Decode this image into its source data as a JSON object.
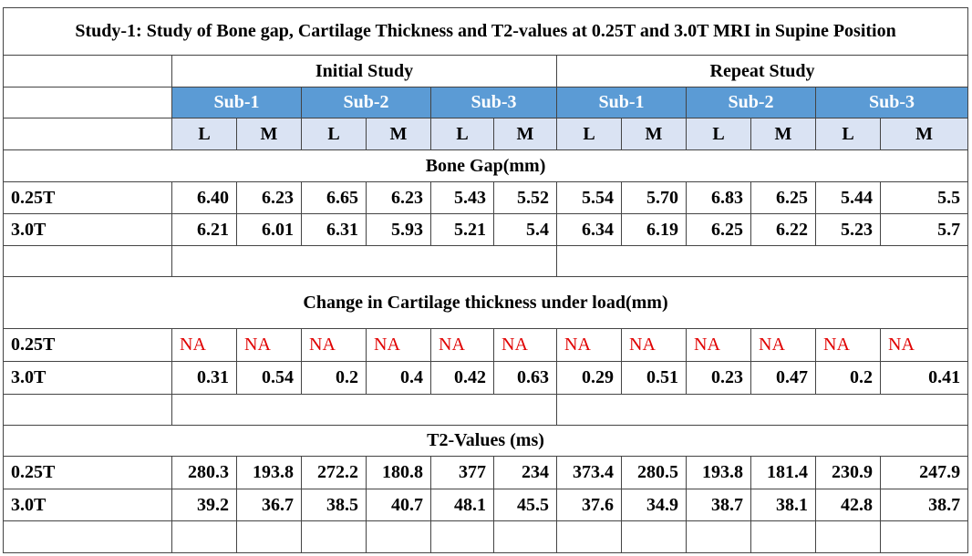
{
  "title": "Study-1: Study of Bone gap, Cartilage Thickness and T2-values at 0.25T and 3.0T MRI in Supine Position",
  "study_headers": [
    "Initial Study",
    "Repeat Study"
  ],
  "subjects": [
    "Sub-1",
    "Sub-2",
    "Sub-3",
    "Sub-1",
    "Sub-2",
    "Sub-3"
  ],
  "sides": [
    "L",
    "M",
    "L",
    "M",
    "L",
    "M",
    "L",
    "M",
    "L",
    "M",
    "L",
    "M"
  ],
  "sections": [
    {
      "title": "Bone Gap(mm)",
      "rows": [
        {
          "label": "0.25T",
          "values": [
            "6.40",
            "6.23",
            "6.65",
            "6.23",
            "5.43",
            "5.52",
            "5.54",
            "5.70",
            "6.83",
            "6.25",
            "5.44",
            "5.5"
          ]
        },
        {
          "label": "3.0T",
          "values": [
            "6.21",
            "6.01",
            "6.31",
            "5.93",
            "5.21",
            "5.4",
            "6.34",
            "6.19",
            "6.25",
            "6.22",
            "5.23",
            "5.7"
          ]
        }
      ]
    },
    {
      "title": "Change in Cartilage thickness under load(mm)",
      "rows": [
        {
          "label": "0.25T",
          "values": [
            "NA",
            "NA",
            "NA",
            "NA",
            "NA",
            "NA",
            "NA",
            "NA",
            "NA",
            "NA",
            "NA",
            "NA"
          ]
        },
        {
          "label": "3.0T",
          "values": [
            "0.31",
            "0.54",
            "0.2",
            "0.4",
            "0.42",
            "0.63",
            "0.29",
            "0.51",
            "0.23",
            "0.47",
            "0.2",
            "0.41"
          ]
        }
      ]
    },
    {
      "title": "T2-Values (ms)",
      "rows": [
        {
          "label": "0.25T",
          "values": [
            "280.3",
            "193.8",
            "272.2",
            "180.8",
            "377",
            "234",
            "373.4",
            "280.5",
            "193.8",
            "181.4",
            "230.9",
            "247.9"
          ]
        },
        {
          "label": "3.0T",
          "values": [
            "39.2",
            "36.7",
            "38.5",
            "40.7",
            "48.1",
            "45.5",
            "37.6",
            "34.9",
            "38.7",
            "38.1",
            "42.8",
            "38.7"
          ]
        }
      ]
    }
  ],
  "colors": {
    "subject_header_bg": "#5b9bd5",
    "side_header_bg": "#dae3f3",
    "na_text": "#e00000"
  }
}
